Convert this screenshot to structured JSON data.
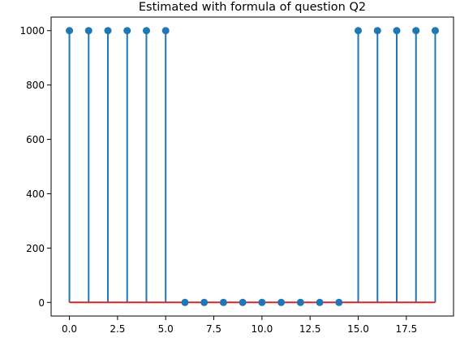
{
  "chart_data": {
    "type": "stem",
    "title": "Estimated with formula of question Q2",
    "xlabel": "",
    "ylabel": "",
    "x": [
      0,
      1,
      2,
      3,
      4,
      5,
      6,
      7,
      8,
      9,
      10,
      11,
      12,
      13,
      14,
      15,
      16,
      17,
      18,
      19
    ],
    "values": [
      1000,
      1000,
      1000,
      1000,
      1000,
      1000,
      0,
      0,
      0,
      0,
      0,
      0,
      0,
      0,
      0,
      1000,
      1000,
      1000,
      1000,
      1000
    ],
    "xlim": [
      -0.95,
      19.95
    ],
    "ylim": [
      -50,
      1050
    ],
    "xticks": [
      0.0,
      2.5,
      5.0,
      7.5,
      10.0,
      12.5,
      15.0,
      17.5
    ],
    "xtick_labels": [
      "0.0",
      "2.5",
      "5.0",
      "7.5",
      "10.0",
      "12.5",
      "15.0",
      "17.5"
    ],
    "yticks": [
      0,
      200,
      400,
      600,
      800,
      1000
    ],
    "ytick_labels": [
      "0",
      "200",
      "400",
      "600",
      "800",
      "1000"
    ],
    "grid": false,
    "colors": {
      "stem": "#1f77b4",
      "marker": "#1f77b4",
      "baseline": "#d62728",
      "axes": "#000000"
    }
  }
}
